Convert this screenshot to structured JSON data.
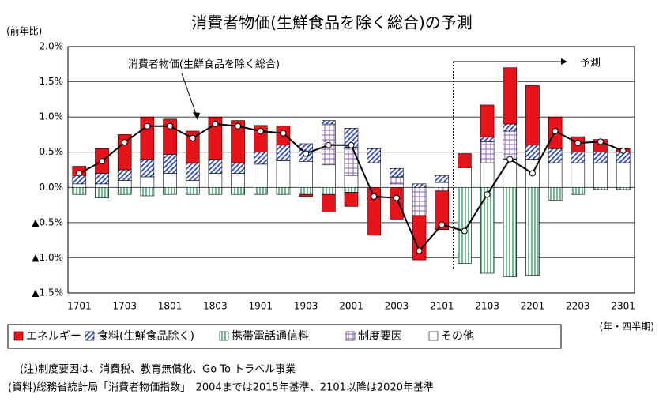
{
  "chart_data": {
    "type": "bar",
    "title": "消費者物価(生鮮食品を除く総合)の予測",
    "y_axis_label": "(前年比)",
    "x_axis_label": "(年・四半期)",
    "categories": [
      "1701",
      null,
      "1703",
      null,
      "1801",
      null,
      "1803",
      null,
      "1901",
      null,
      "1903",
      null,
      "2001",
      null,
      "2003",
      null,
      "2101",
      null,
      "2103",
      null,
      "2201",
      null,
      "2203",
      null,
      "2301"
    ],
    "series": [
      {
        "name": "エネルギー",
        "color": "#e8131a",
        "values": [
          0.13,
          0.35,
          0.5,
          0.6,
          0.5,
          0.45,
          0.6,
          0.6,
          0.38,
          0.27,
          -0.03,
          -0.25,
          -0.2,
          -0.68,
          -0.45,
          -0.63,
          -0.55,
          0.2,
          0.45,
          0.8,
          0.85,
          0.45,
          0.22,
          0.18,
          0.05
        ]
      },
      {
        "name": "食料(生鮮食品除く)",
        "color": "#1f3fbf",
        "values": [
          0.12,
          0.15,
          0.15,
          0.25,
          0.27,
          0.25,
          0.2,
          0.15,
          0.17,
          0.22,
          0.25,
          0.05,
          0.27,
          0.2,
          0.12,
          0.05,
          0.1,
          0,
          0.07,
          0.1,
          0.2,
          0.2,
          0.15,
          0.15,
          0.15
        ]
      },
      {
        "name": "携帯電話通信料",
        "color": "#3fa86a",
        "values": [
          -0.1,
          -0.15,
          -0.1,
          -0.12,
          -0.1,
          -0.1,
          -0.1,
          -0.1,
          -0.1,
          -0.1,
          -0.1,
          -0.1,
          -0.07,
          0,
          0,
          0,
          0,
          -1.08,
          -1.22,
          -1.27,
          -1.25,
          -0.18,
          -0.1,
          -0.03,
          -0.03
        ]
      },
      {
        "name": "制度要因",
        "color": "#8a5fb8",
        "values": [
          0,
          0,
          0,
          0,
          0,
          0,
          0,
          0,
          0,
          0,
          0,
          0.58,
          0.4,
          0,
          0.1,
          -0.4,
          -0.05,
          0,
          0.3,
          0.4,
          0,
          0,
          0,
          0,
          0
        ]
      },
      {
        "name": "その他",
        "color": "#ffffff",
        "values": [
          0.05,
          0.05,
          0.1,
          0.15,
          0.2,
          0.1,
          0.2,
          0.2,
          0.33,
          0.38,
          0.37,
          0.32,
          0.17,
          0.35,
          0.05,
          0,
          0.07,
          0.28,
          0.35,
          0.4,
          0.4,
          0.35,
          0.35,
          0.35,
          0.35
        ]
      }
    ],
    "line": {
      "name": "消費者物価(生鮮食品を除く総合)",
      "color": "#000000",
      "values": [
        0.2,
        0.37,
        0.64,
        0.87,
        0.87,
        0.7,
        0.9,
        0.87,
        0.8,
        0.77,
        0.48,
        0.6,
        0.6,
        -0.13,
        -0.15,
        -0.9,
        -0.53,
        -0.62,
        -0.1,
        0.4,
        0.2,
        0.8,
        0.63,
        0.65,
        0.52
      ]
    },
    "annotations": [
      "予測"
    ],
    "ylim": [
      -1.5,
      2.0
    ],
    "yticks": [
      {
        "value": 2.0,
        "label": "2.0%"
      },
      {
        "value": 1.5,
        "label": "1.5%"
      },
      {
        "value": 1.0,
        "label": "1.0%"
      },
      {
        "value": 0.5,
        "label": "0.5%"
      },
      {
        "value": 0,
        "label": "0.0%"
      },
      {
        "value": -0.5,
        "label": "▲0.5%"
      },
      {
        "value": -1.0,
        "label": "▲1.0%"
      },
      {
        "value": -1.5,
        "label": "▲1.5%"
      }
    ],
    "grid": true,
    "notes": [
      "(注)制度要因は、消費税、教育無償化、Go To トラベル事業",
      "(資料)総務省統計局「消費者物価指数」　2004までは2015年基準、2101以降は2020年基準"
    ]
  }
}
